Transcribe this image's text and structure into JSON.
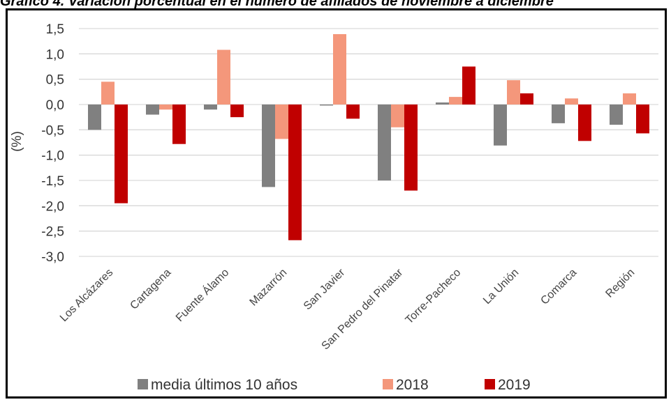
{
  "title": "Gráfico 4. Variación porcentual en el número de afiliados de noviembre a diciembre",
  "chart_data": {
    "type": "bar",
    "ylabel": "(%)",
    "ylim": [
      -3.0,
      1.5
    ],
    "yticks": [
      "1,5",
      "1,0",
      "0,5",
      "0,0",
      "-0,5",
      "-1,0",
      "-1,5",
      "-2,0",
      "-2,5",
      "-3,0"
    ],
    "grid": true,
    "legend_position": "bottom",
    "categories": [
      "Los Alcázares",
      "Cartagena",
      "Fuente Álamo",
      "Mazarrón",
      "San Javier",
      "San Pedro del Pinatar",
      "Torre-Pacheco",
      "La Unión",
      "Comarca",
      "Región"
    ],
    "series": [
      {
        "name": "media últimos 10 años",
        "color": "#808080",
        "values": [
          -0.5,
          -0.2,
          -0.1,
          -1.63,
          -0.02,
          -1.5,
          0.04,
          -0.81,
          -0.37,
          -0.4
        ]
      },
      {
        "name": "2018",
        "color": "#f4977b",
        "values": [
          0.45,
          -0.1,
          1.08,
          -0.68,
          1.39,
          -0.45,
          0.15,
          0.48,
          0.12,
          0.22
        ]
      },
      {
        "name": "2019",
        "color": "#c00000",
        "values": [
          -1.95,
          -0.78,
          -0.25,
          -2.68,
          -0.28,
          -1.7,
          0.75,
          0.22,
          -0.72,
          -0.57
        ]
      }
    ]
  }
}
